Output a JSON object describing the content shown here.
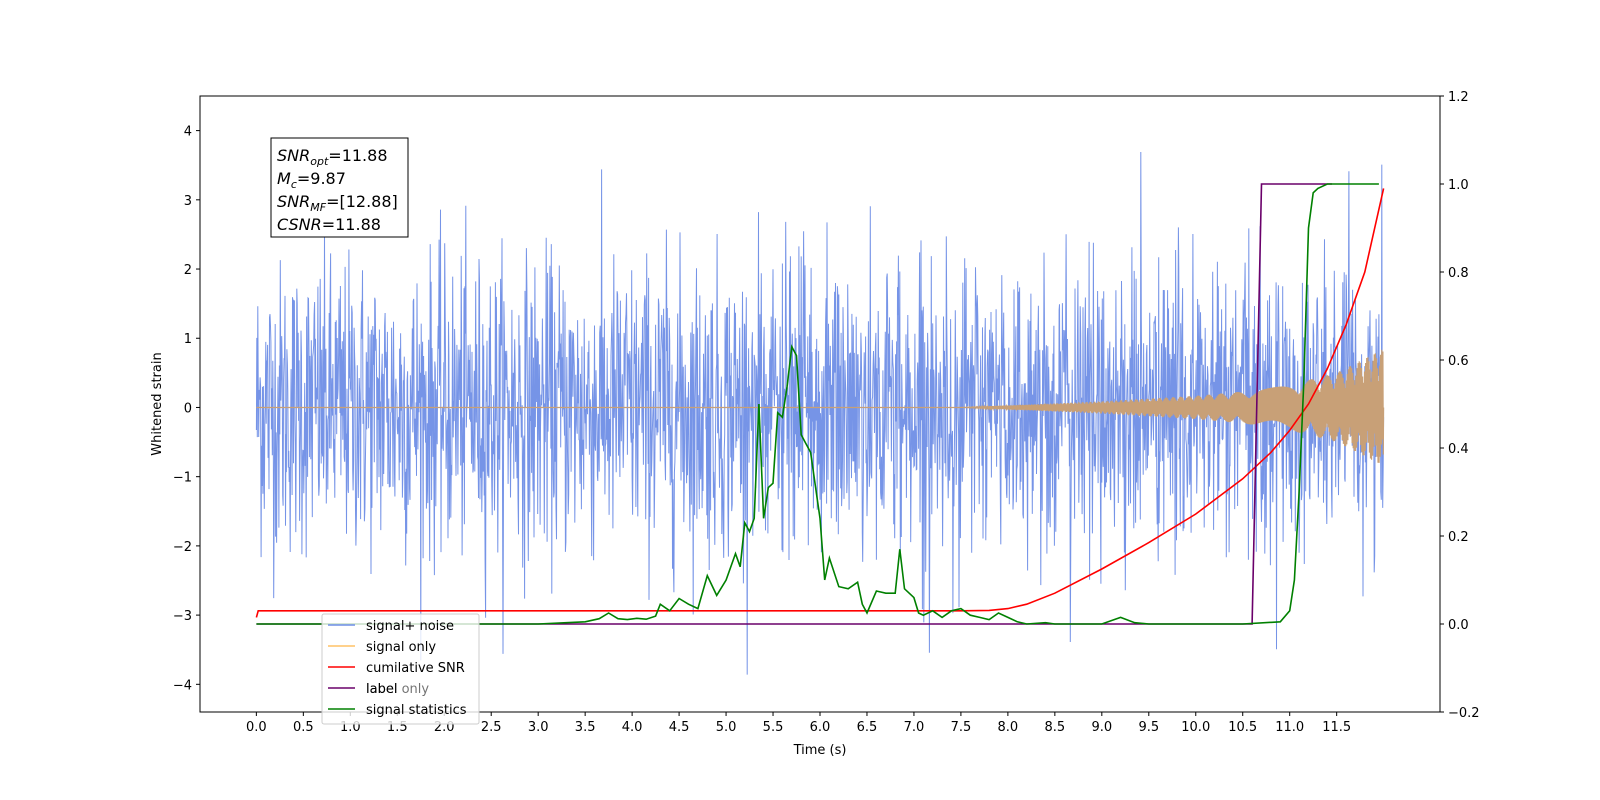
{
  "chart_data": {
    "type": "line",
    "xlabel": "Time (s)",
    "ylabel": "Whitened strain",
    "xlim": [
      -0.6,
      12.6
    ],
    "ylim_left": [
      -4.4,
      4.5
    ],
    "ylim_right": [
      -0.2,
      1.2
    ],
    "x_ticks": [
      "0.0",
      "0.5",
      "1.0",
      "1.5",
      "2.0",
      "2.5",
      "3.0",
      "3.5",
      "4.0",
      "4.5",
      "5.0",
      "5.5",
      "6.0",
      "6.5",
      "7.0",
      "7.5",
      "8.0",
      "8.5",
      "9.0",
      "9.5",
      "10.0",
      "10.5",
      "11.0",
      "11.5"
    ],
    "y_ticks_left": [
      "4",
      "3",
      "2",
      "1",
      "0",
      "−1",
      "−2",
      "−3",
      "−4"
    ],
    "y_ticks_right": [
      "1.2",
      "1.0",
      "0.8",
      "0.6",
      "0.4",
      "0.2",
      "0.0",
      "−0.2"
    ],
    "annotation": {
      "lines": [
        {
          "main": "SNR",
          "sub": "opt",
          "rest": "=11.88"
        },
        {
          "main": "M",
          "sub": "c",
          "rest": "=9.87"
        },
        {
          "main": "SNR",
          "sub": "MF",
          "rest": "=[12.88]"
        },
        {
          "main": "CSNR",
          "sub": "",
          "rest": "=11.88"
        }
      ]
    },
    "legend": {
      "placement": "lower-left",
      "entries": [
        {
          "label": "signal+ noise",
          "color": "#6f8ee6"
        },
        {
          "label": "signal only",
          "color": "#ffc266"
        },
        {
          "label": "cumilative SNR",
          "color": "#ff0000"
        },
        {
          "label": "label",
          "color": "#6a006a"
        },
        {
          "label": "signal statistics",
          "color": "#008000"
        }
      ]
    },
    "hidden_legend_text": "label only",
    "series": [
      {
        "name": "signal+ noise",
        "axis": "left",
        "color": "#6f8ee6",
        "description_params": {
          "t_start": 0.0,
          "t_end": 12.0,
          "noise_std": 1.0,
          "max_abs": 4.1
        }
      },
      {
        "name": "signal only",
        "axis": "left",
        "color": "#c8a077",
        "envelope": {
          "x": [
            0,
            7.5,
            8.0,
            8.5,
            9.0,
            9.5,
            10.0,
            10.5,
            11.0,
            11.5,
            12.0
          ],
          "y": [
            0,
            0,
            0.03,
            0.06,
            0.09,
            0.13,
            0.17,
            0.23,
            0.33,
            0.5,
            0.85
          ]
        }
      },
      {
        "name": "cumilative SNR",
        "axis": "right",
        "color": "#ff0000",
        "x": [
          0.0,
          0.02,
          7.5,
          7.8,
          8.0,
          8.2,
          8.5,
          9.0,
          9.5,
          10.0,
          10.5,
          10.8,
          11.0,
          11.2,
          11.4,
          11.6,
          11.8,
          12.0
        ],
        "y": [
          0.015,
          0.03,
          0.03,
          0.031,
          0.035,
          0.045,
          0.07,
          0.125,
          0.185,
          0.25,
          0.33,
          0.39,
          0.44,
          0.5,
          0.58,
          0.68,
          0.8,
          0.99
        ]
      },
      {
        "name": "label",
        "axis": "right",
        "color": "#6a006a",
        "x": [
          0.0,
          10.6,
          10.65,
          10.7,
          11.45
        ],
        "y": [
          0.0,
          0.0,
          0.5,
          1.0,
          1.0
        ]
      },
      {
        "name": "signal statistics",
        "axis": "right",
        "color": "#008000",
        "x": [
          0.0,
          3.0,
          3.3,
          3.5,
          3.65,
          3.75,
          3.85,
          3.95,
          4.05,
          4.15,
          4.25,
          4.3,
          4.4,
          4.5,
          4.6,
          4.7,
          4.8,
          4.9,
          5.0,
          5.1,
          5.15,
          5.2,
          5.25,
          5.3,
          5.35,
          5.4,
          5.45,
          5.5,
          5.55,
          5.6,
          5.65,
          5.7,
          5.75,
          5.8,
          5.85,
          5.9,
          6.0,
          6.05,
          6.1,
          6.2,
          6.3,
          6.4,
          6.45,
          6.5,
          6.6,
          6.7,
          6.8,
          6.85,
          6.9,
          7.0,
          7.05,
          7.1,
          7.2,
          7.3,
          7.4,
          7.5,
          7.6,
          7.7,
          7.8,
          7.9,
          8.0,
          8.1,
          8.2,
          8.4,
          8.5,
          9.0,
          9.2,
          9.35,
          9.5,
          10.0,
          10.5,
          10.9,
          11.0,
          11.05,
          11.1,
          11.15,
          11.2,
          11.25,
          11.3,
          11.4,
          11.5,
          11.6,
          11.8,
          11.95
        ],
        "y": [
          0.0,
          0.0,
          0.003,
          0.005,
          0.012,
          0.025,
          0.012,
          0.01,
          0.013,
          0.011,
          0.018,
          0.045,
          0.03,
          0.058,
          0.045,
          0.035,
          0.11,
          0.065,
          0.1,
          0.16,
          0.13,
          0.23,
          0.21,
          0.24,
          0.5,
          0.24,
          0.31,
          0.32,
          0.48,
          0.47,
          0.54,
          0.63,
          0.61,
          0.43,
          0.41,
          0.39,
          0.24,
          0.1,
          0.15,
          0.085,
          0.08,
          0.095,
          0.045,
          0.025,
          0.075,
          0.07,
          0.07,
          0.17,
          0.08,
          0.06,
          0.025,
          0.02,
          0.03,
          0.015,
          0.03,
          0.035,
          0.02,
          0.015,
          0.01,
          0.025,
          0.015,
          0.005,
          0.0,
          0.003,
          0.0,
          0.0,
          0.015,
          0.003,
          0.0,
          0.0,
          0.0,
          0.005,
          0.03,
          0.1,
          0.3,
          0.55,
          0.9,
          0.98,
          0.99,
          1.0,
          1.0,
          1.0,
          1.0,
          1.0
        ]
      }
    ]
  }
}
